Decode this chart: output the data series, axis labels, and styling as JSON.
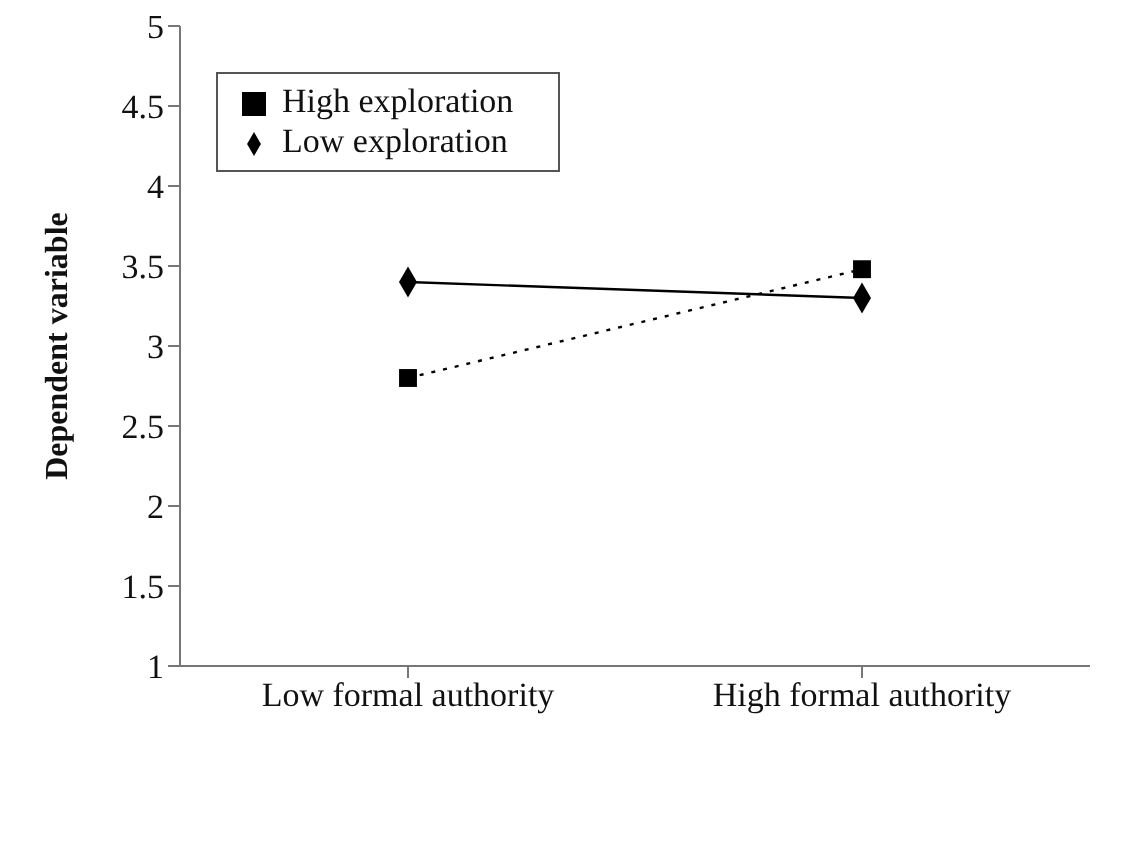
{
  "chart_data": {
    "type": "line",
    "ylabel": "Dependent variable",
    "categories": [
      "Low formal authority",
      "High formal authority"
    ],
    "series": [
      {
        "name": "Low exploration",
        "color": "#000000",
        "values": [
          3.4,
          3.3
        ],
        "marker": "diamond",
        "line_style": "solid"
      },
      {
        "name": "High exploration",
        "color": "#000000",
        "values": [
          2.8,
          3.48
        ],
        "marker": "square",
        "line_style": "dotted"
      }
    ],
    "ylim": [
      1,
      5
    ],
    "yticks": [
      1,
      1.5,
      2,
      2.5,
      3,
      3.5,
      4,
      4.5,
      5
    ],
    "grid": false,
    "legend": "top left"
  }
}
